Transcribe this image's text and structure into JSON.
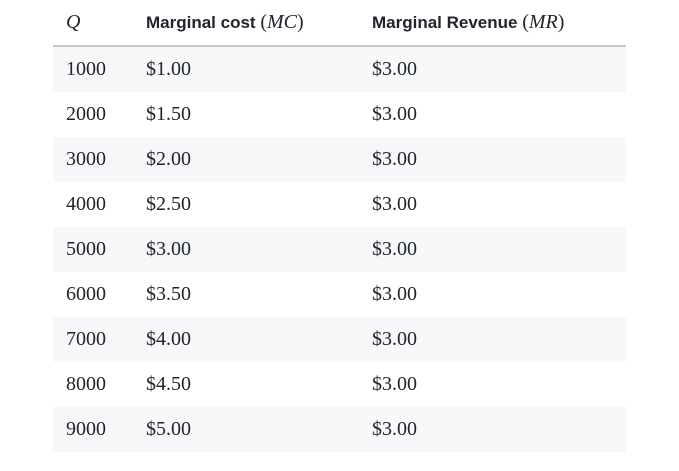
{
  "table": {
    "headers": [
      {
        "var": "Q",
        "label": "",
        "var_paren": ""
      },
      {
        "var": "MC",
        "label": "Marginal cost ",
        "var_paren": "MC"
      },
      {
        "var": "MR",
        "label": "Marginal Revenue ",
        "var_paren": "MR"
      }
    ],
    "header_q": "Q",
    "header_mc_label": "Marginal cost ",
    "header_mc_var": "MC",
    "header_mr_label": "Marginal Revenue ",
    "header_mr_var": "MR",
    "rows": [
      {
        "q": "1000",
        "mc": "$1.00",
        "mr": "$3.00"
      },
      {
        "q": "2000",
        "mc": "$1.50",
        "mr": "$3.00"
      },
      {
        "q": "3000",
        "mc": "$2.00",
        "mr": "$3.00"
      },
      {
        "q": "4000",
        "mc": "$2.50",
        "mr": "$3.00"
      },
      {
        "q": "5000",
        "mc": "$3.00",
        "mr": "$3.00"
      },
      {
        "q": "6000",
        "mc": "$3.50",
        "mr": "$3.00"
      },
      {
        "q": "7000",
        "mc": "$4.00",
        "mr": "$3.00"
      },
      {
        "q": "8000",
        "mc": "$4.50",
        "mr": "$3.00"
      },
      {
        "q": "9000",
        "mc": "$5.00",
        "mr": "$3.00"
      }
    ]
  },
  "colors": {
    "text": "#21242c",
    "stripe": "#f7f8fa",
    "header_rule": "#c4c7cc"
  }
}
